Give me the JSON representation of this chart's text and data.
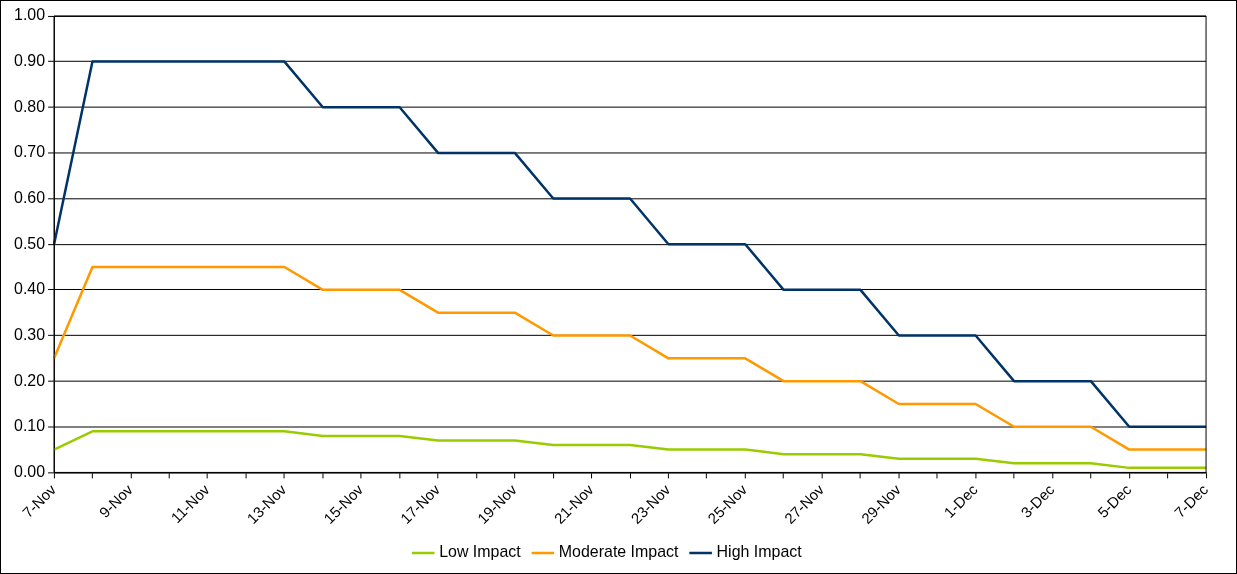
{
  "chart_data": {
    "type": "line",
    "categories": [
      "7-Nov",
      null,
      "9-Nov",
      null,
      "11-Nov",
      null,
      "13-Nov",
      null,
      "15-Nov",
      null,
      "17-Nov",
      null,
      "19-Nov",
      null,
      "21-Nov",
      null,
      "23-Nov",
      null,
      "25-Nov",
      null,
      "27-Nov",
      null,
      "29-Nov",
      null,
      "1-Dec",
      null,
      "3-Dec",
      null,
      "5-Dec",
      null,
      "7-Dec"
    ],
    "series": [
      {
        "name": "Low Impact",
        "color": "#99cc00",
        "values": [
          0.05,
          0.09,
          0.09,
          0.09,
          0.09,
          0.09,
          0.09,
          0.08,
          0.08,
          0.08,
          0.07,
          0.07,
          0.07,
          0.06,
          0.06,
          0.06,
          0.05,
          0.05,
          0.05,
          0.04,
          0.04,
          0.04,
          0.03,
          0.03,
          0.03,
          0.02,
          0.02,
          0.02,
          0.01,
          0.01,
          0.01
        ]
      },
      {
        "name": "Moderate Impact",
        "color": "#ff9900",
        "values": [
          0.25,
          0.45,
          0.45,
          0.45,
          0.45,
          0.45,
          0.45,
          0.4,
          0.4,
          0.4,
          0.35,
          0.35,
          0.35,
          0.3,
          0.3,
          0.3,
          0.25,
          0.25,
          0.25,
          0.2,
          0.2,
          0.2,
          0.15,
          0.15,
          0.15,
          0.1,
          0.1,
          0.1,
          0.05,
          0.05,
          0.05
        ]
      },
      {
        "name": "High Impact",
        "color": "#003366",
        "values": [
          0.5,
          0.9,
          0.9,
          0.9,
          0.9,
          0.9,
          0.9,
          0.8,
          0.8,
          0.8,
          0.7,
          0.7,
          0.7,
          0.6,
          0.6,
          0.6,
          0.5,
          0.5,
          0.5,
          0.4,
          0.4,
          0.4,
          0.3,
          0.3,
          0.3,
          0.2,
          0.2,
          0.2,
          0.1,
          0.1,
          0.1
        ]
      }
    ],
    "ylim": [
      0,
      1
    ],
    "yticks": [
      {
        "value": 0,
        "label": "0.00"
      },
      {
        "value": 0.1,
        "label": "0.10"
      },
      {
        "value": 0.2,
        "label": "0.20"
      },
      {
        "value": 0.3,
        "label": "0.30"
      },
      {
        "value": 0.4,
        "label": "0.40"
      },
      {
        "value": 0.5,
        "label": "0.50"
      },
      {
        "value": 0.6,
        "label": "0.60"
      },
      {
        "value": 0.7,
        "label": "0.70"
      },
      {
        "value": 0.8,
        "label": "0.80"
      },
      {
        "value": 0.9,
        "label": "0.90"
      },
      {
        "value": 1,
        "label": "1.00"
      }
    ],
    "grid": "y",
    "legend": "bottom",
    "marker": "none"
  }
}
